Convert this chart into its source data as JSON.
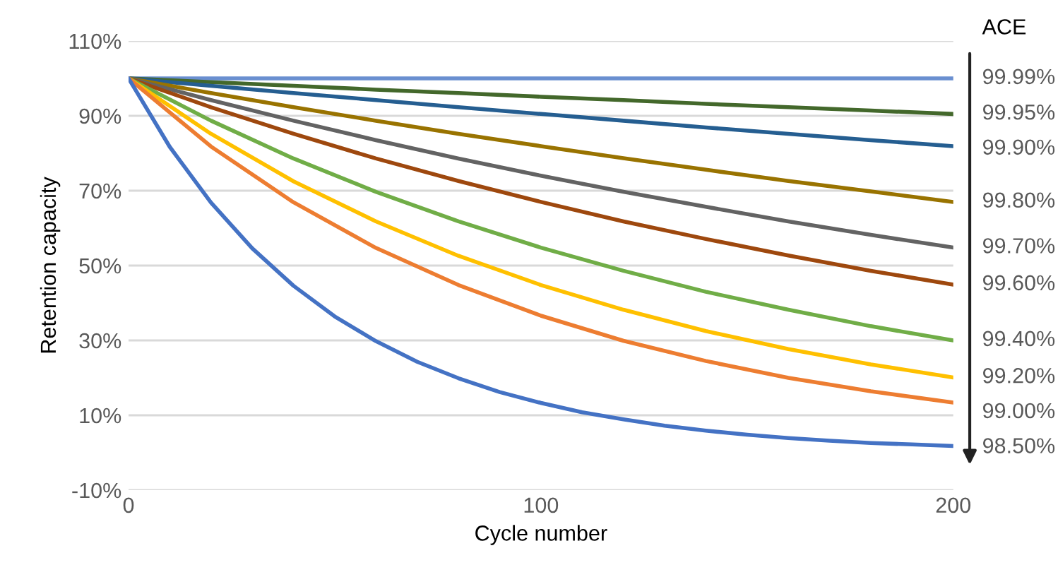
{
  "chart_data": {
    "type": "line",
    "xlabel": "Cycle number",
    "ylabel": "Retention capacity",
    "legend_title": "ACE",
    "legend": "right",
    "grid": "y",
    "marker": "none",
    "line_style": "solid",
    "xlim": [
      0,
      200
    ],
    "xticks": [
      0,
      100,
      200
    ],
    "ylim": [
      -10,
      110
    ],
    "yticks": [
      {
        "value": -10,
        "label": "-10%"
      },
      {
        "value": 10,
        "label": "10%"
      },
      {
        "value": 30,
        "label": "30%"
      },
      {
        "value": 50,
        "label": "50%"
      },
      {
        "value": 70,
        "label": "70%"
      },
      {
        "value": 90,
        "label": "90%"
      },
      {
        "value": 110,
        "label": "110%"
      }
    ],
    "x": [
      0,
      20,
      40,
      60,
      80,
      100,
      120,
      140,
      160,
      180,
      200
    ],
    "series": [
      {
        "name": "99.99%",
        "color": "#6a8fd0",
        "values": [
          100,
          100,
          100,
          100,
          100,
          100,
          100,
          100,
          100,
          100,
          100
        ]
      },
      {
        "name": "99.95%",
        "color": "#43682b",
        "values": [
          100,
          99.0,
          98.0,
          97.0,
          96.1,
          95.1,
          94.2,
          93.2,
          92.3,
          91.4,
          90.5
        ]
      },
      {
        "name": "99.90%",
        "color": "#255e91",
        "values": [
          100,
          98.0,
          96.1,
          94.2,
          92.3,
          90.5,
          88.7,
          86.9,
          85.2,
          83.5,
          81.9
        ]
      },
      {
        "name": "99.80%",
        "color": "#997300",
        "values": [
          100,
          96.1,
          92.3,
          88.7,
          85.2,
          81.9,
          78.7,
          75.6,
          72.6,
          69.8,
          67.0
        ]
      },
      {
        "name": "99.70%",
        "color": "#636363",
        "values": [
          100,
          94.2,
          88.7,
          83.5,
          78.6,
          74.0,
          69.7,
          65.7,
          61.8,
          58.2,
          54.8
        ]
      },
      {
        "name": "99.60%",
        "color": "#9e480e",
        "values": [
          100,
          92.3,
          85.2,
          78.6,
          72.6,
          67.0,
          61.8,
          57.1,
          52.7,
          48.6,
          44.9
        ]
      },
      {
        "name": "99.40%",
        "color": "#70ad47",
        "values": [
          100,
          88.7,
          78.6,
          69.7,
          61.8,
          54.8,
          48.6,
          43.0,
          38.2,
          33.8,
          30.0
        ]
      },
      {
        "name": "99.20%",
        "color": "#ffc000",
        "values": [
          100,
          85.2,
          72.5,
          61.8,
          52.6,
          44.8,
          38.2,
          32.5,
          27.7,
          23.6,
          20.1
        ]
      },
      {
        "name": "99.00%",
        "color": "#ed7d31",
        "values": [
          100,
          81.8,
          66.9,
          54.7,
          44.8,
          36.6,
          29.9,
          24.5,
          20.0,
          16.4,
          13.4
        ]
      },
      {
        "name": "98.50%",
        "color": "#4472c4",
        "x": [
          0,
          10,
          20,
          30,
          40,
          50,
          60,
          70,
          80,
          90,
          100,
          110,
          120,
          130,
          140,
          150,
          160,
          170,
          180,
          190,
          200
        ],
        "values": [
          100,
          81.7,
          66.8,
          54.6,
          44.6,
          36.4,
          29.8,
          24.3,
          19.9,
          16.2,
          13.3,
          10.8,
          8.9,
          7.2,
          5.9,
          4.8,
          3.9,
          3.2,
          2.6,
          2.2,
          1.8
        ]
      }
    ]
  }
}
